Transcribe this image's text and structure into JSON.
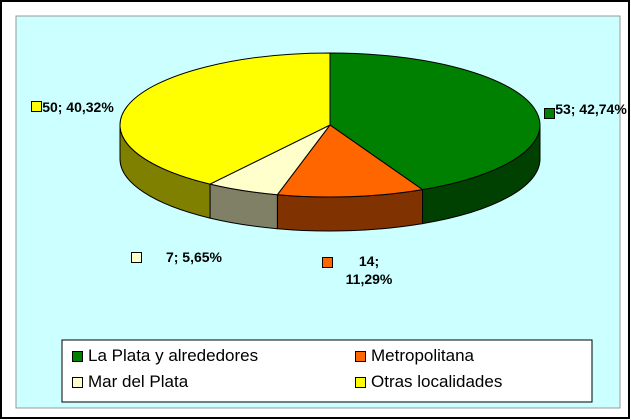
{
  "chart_data": {
    "type": "pie3d",
    "categories": [
      "La Plata y alrededores",
      "Metropolitana",
      "Mar del Plata",
      "Otras localidades"
    ],
    "values": [
      53,
      14,
      7,
      50
    ],
    "value_labels": [
      "53; 42,74%",
      "14; 11,29%",
      "7; 5,65%",
      "50; 40,32%"
    ],
    "colors": [
      "#008000",
      "#ff6600",
      "#ffffcc",
      "#ffff00"
    ],
    "side_colors": [
      "#004000",
      "#803300",
      "#808066",
      "#808000"
    ],
    "legend": "bottom"
  }
}
